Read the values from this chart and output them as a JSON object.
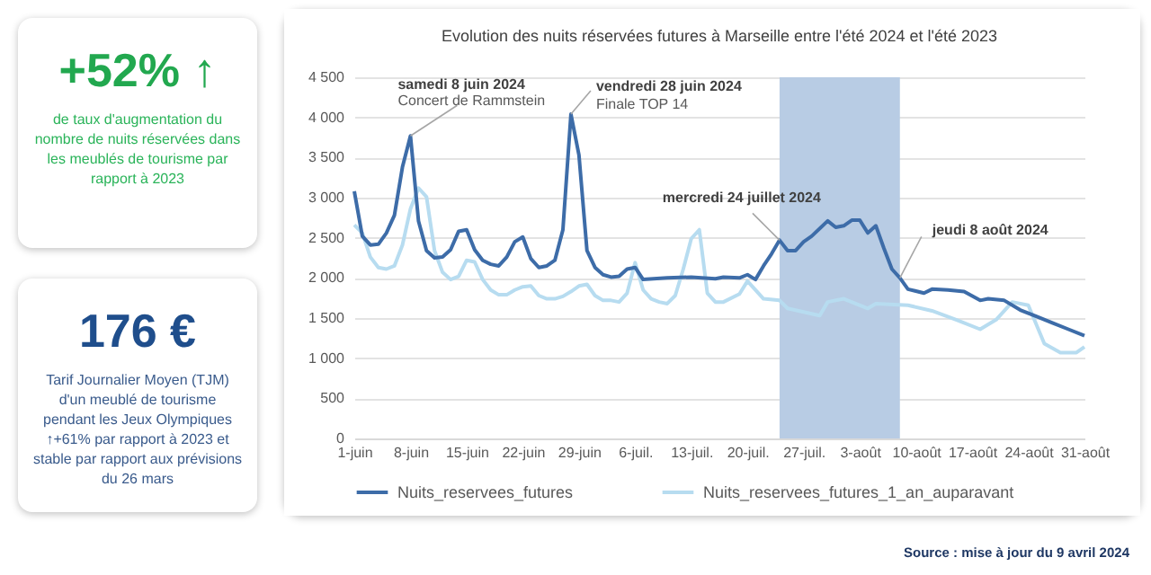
{
  "chart_data": [
    {
      "type": "other",
      "title": "+52% ↑",
      "annotations": [
        "de taux d'augmentation du nombre de nuits réservées dans les meublés de tourisme par rapport à 2023"
      ]
    },
    {
      "type": "other",
      "title": "176 €",
      "annotations": [
        "Tarif Journalier Moyen (TJM) d'un meublé de tourisme pendant les Jeux Olympiques ↑+61% par rapport à 2023 et stable par rapport aux prévisions du 26 mars"
      ]
    },
    {
      "type": "line",
      "title": "Evolution des nuits réservées futures à Marseille entre l'été 2024 et l'été 2023",
      "xlim": [
        "2024-06-01",
        "2024-08-31"
      ],
      "xticks": [
        {
          "value": "2024-06-01",
          "label": "1-juin"
        },
        {
          "value": "2024-06-08",
          "label": "8-juin"
        },
        {
          "value": "2024-06-15",
          "label": "15-juin"
        },
        {
          "value": "2024-06-22",
          "label": "22-juin"
        },
        {
          "value": "2024-06-29",
          "label": "29-juin"
        },
        {
          "value": "2024-07-06",
          "label": "6-juil."
        },
        {
          "value": "2024-07-13",
          "label": "13-juil."
        },
        {
          "value": "2024-07-20",
          "label": "20-juil."
        },
        {
          "value": "2024-07-27",
          "label": "27-juil."
        },
        {
          "value": "2024-08-03",
          "label": "3-août"
        },
        {
          "value": "2024-08-10",
          "label": "10-août"
        },
        {
          "value": "2024-08-17",
          "label": "17-août"
        },
        {
          "value": "2024-08-24",
          "label": "24-août"
        },
        {
          "value": "2024-08-31",
          "label": "31-août"
        }
      ],
      "ylim": [
        0,
        4500
      ],
      "yticks": [
        0,
        500,
        {
          "value": 1000,
          "label": "1 000"
        },
        {
          "value": 1500,
          "label": "1 500"
        },
        {
          "value": 2000,
          "label": "2 000"
        },
        {
          "value": 2500,
          "label": "2 500"
        },
        {
          "value": 3000,
          "label": "3 000"
        },
        {
          "value": 3500,
          "label": "3 500"
        },
        {
          "value": 4000,
          "label": "4 000"
        },
        {
          "value": 4500,
          "label": "4 500"
        }
      ],
      "grid": "y",
      "legend": "bottom",
      "bands": [
        {
          "axis": "x",
          "from": "2024-07-24",
          "to": "2024-08-08",
          "color": "#b8cce4"
        }
      ],
      "series": [
        {
          "name": "Nuits_reservees_futures",
          "color": "#3d6ca8",
          "x": [
            "2024-06-01",
            "2024-06-02",
            "2024-06-03",
            "2024-06-04",
            "2024-06-05",
            "2024-06-06",
            "2024-06-07",
            "2024-06-08",
            "2024-06-09",
            "2024-06-10",
            "2024-06-11",
            "2024-06-12",
            "2024-06-13",
            "2024-06-14",
            "2024-06-15",
            "2024-06-16",
            "2024-06-17",
            "2024-06-18",
            "2024-06-19",
            "2024-06-20",
            "2024-06-21",
            "2024-06-22",
            "2024-06-23",
            "2024-06-24",
            "2024-06-25",
            "2024-06-26",
            "2024-06-27",
            "2024-06-28",
            "2024-06-29",
            "2024-06-30",
            "2024-07-01",
            "2024-07-02",
            "2024-07-03",
            "2024-07-04",
            "2024-07-05",
            "2024-07-06",
            "2024-07-07",
            "2024-07-10",
            "2024-07-13",
            "2024-07-16",
            "2024-07-17",
            "2024-07-19",
            "2024-07-20",
            "2024-07-21",
            "2024-07-22",
            "2024-07-23",
            "2024-07-24",
            "2024-07-25",
            "2024-07-26",
            "2024-07-27",
            "2024-07-28",
            "2024-07-30",
            "2024-07-31",
            "2024-08-01",
            "2024-08-02",
            "2024-08-03",
            "2024-08-04",
            "2024-08-05",
            "2024-08-06",
            "2024-08-07",
            "2024-08-08",
            "2024-08-09",
            "2024-08-11",
            "2024-08-12",
            "2024-08-14",
            "2024-08-16",
            "2024-08-18",
            "2024-08-19",
            "2024-08-21",
            "2024-08-23",
            "2024-08-25",
            "2024-08-27",
            "2024-08-29",
            "2024-08-31"
          ],
          "values": [
            3080,
            2520,
            2410,
            2420,
            2560,
            2780,
            3380,
            3770,
            2710,
            2340,
            2250,
            2260,
            2350,
            2580,
            2600,
            2350,
            2220,
            2170,
            2150,
            2260,
            2450,
            2510,
            2240,
            2130,
            2150,
            2220,
            2600,
            4040,
            3530,
            2340,
            2130,
            2040,
            2010,
            2020,
            2110,
            2130,
            1980,
            2000,
            2010,
            1990,
            2010,
            2000,
            2040,
            1980,
            2150,
            2300,
            2470,
            2340,
            2340,
            2450,
            2520,
            2710,
            2630,
            2650,
            2720,
            2720,
            2560,
            2650,
            2370,
            2110,
            2000,
            1860,
            1810,
            1860,
            1850,
            1830,
            1720,
            1740,
            1720,
            1600,
            1520,
            1440,
            1360,
            1280
          ]
        },
        {
          "name": "Nuits_reservees_futures_1_an_auparavant",
          "color": "#b7dcf0",
          "x": [
            "2024-06-01",
            "2024-06-02",
            "2024-06-03",
            "2024-06-04",
            "2024-06-05",
            "2024-06-06",
            "2024-06-07",
            "2024-06-08",
            "2024-06-09",
            "2024-06-10",
            "2024-06-11",
            "2024-06-12",
            "2024-06-13",
            "2024-06-14",
            "2024-06-15",
            "2024-06-16",
            "2024-06-17",
            "2024-06-18",
            "2024-06-19",
            "2024-06-20",
            "2024-06-21",
            "2024-06-22",
            "2024-06-23",
            "2024-06-24",
            "2024-06-25",
            "2024-06-26",
            "2024-06-27",
            "2024-06-28",
            "2024-06-29",
            "2024-06-30",
            "2024-07-01",
            "2024-07-02",
            "2024-07-03",
            "2024-07-04",
            "2024-07-05",
            "2024-07-06",
            "2024-07-07",
            "2024-07-08",
            "2024-07-09",
            "2024-07-10",
            "2024-07-11",
            "2024-07-12",
            "2024-07-13",
            "2024-07-14",
            "2024-07-15",
            "2024-07-16",
            "2024-07-17",
            "2024-07-19",
            "2024-07-20",
            "2024-07-22",
            "2024-07-24",
            "2024-07-25",
            "2024-07-29",
            "2024-07-30",
            "2024-08-01",
            "2024-08-04",
            "2024-08-05",
            "2024-08-09",
            "2024-08-12",
            "2024-08-15",
            "2024-08-18",
            "2024-08-20",
            "2024-08-22",
            "2024-08-24",
            "2024-08-26",
            "2024-08-28",
            "2024-08-30",
            "2024-08-31"
          ],
          "values": [
            2660,
            2560,
            2260,
            2130,
            2110,
            2150,
            2410,
            2860,
            3120,
            3010,
            2340,
            2070,
            1980,
            2020,
            2220,
            2200,
            1980,
            1850,
            1790,
            1790,
            1850,
            1890,
            1900,
            1780,
            1740,
            1740,
            1770,
            1830,
            1900,
            1920,
            1780,
            1720,
            1720,
            1700,
            1810,
            2190,
            1850,
            1740,
            1700,
            1680,
            1780,
            2110,
            2490,
            2600,
            1810,
            1700,
            1700,
            1800,
            1960,
            1740,
            1720,
            1620,
            1530,
            1700,
            1740,
            1620,
            1680,
            1660,
            1590,
            1480,
            1360,
            1480,
            1700,
            1660,
            1180,
            1070,
            1070,
            1140
          ]
        }
      ],
      "annotations": [
        {
          "text": "samedi 8 juin 2024",
          "x": "2024-06-08",
          "y": 3770
        },
        {
          "text": "Concert de Rammstein",
          "x": "2024-06-08",
          "y": 3770
        },
        {
          "text": "vendredi 28 juin 2024",
          "x": "2024-06-28",
          "y": 4040
        },
        {
          "text": "Finale TOP 14",
          "x": "2024-06-28",
          "y": 4040
        },
        {
          "text": "mercredi 24 juillet 2024",
          "x": "2024-07-24",
          "y": 2470
        },
        {
          "text": "jeudi 8 août 2024",
          "x": "2024-08-08",
          "y": 2000
        },
        "Source : mise à jour du 9 avril 2024"
      ]
    }
  ]
}
